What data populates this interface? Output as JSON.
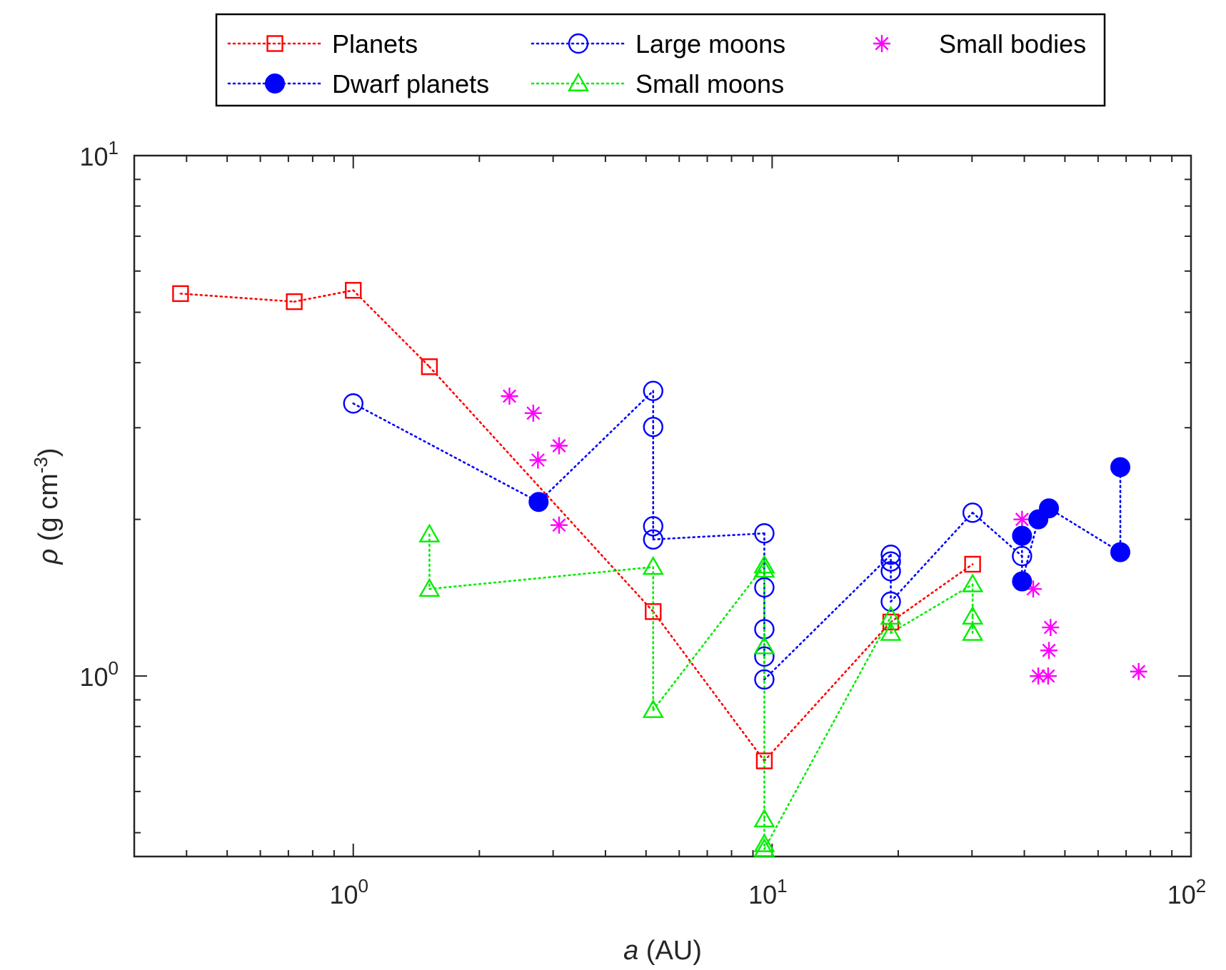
{
  "chart_data": {
    "type": "scatter",
    "xscale": "log",
    "yscale": "log",
    "xlim": [
      0.3,
      100
    ],
    "ylim": [
      0.45,
      10
    ],
    "x_ticks": [
      {
        "value": 1,
        "base": "10",
        "exp": "0"
      },
      {
        "value": 10,
        "base": "10",
        "exp": "1"
      },
      {
        "value": 100,
        "base": "10",
        "exp": "2"
      }
    ],
    "y_ticks": [
      {
        "value": 1,
        "base": "10",
        "exp": "0"
      },
      {
        "value": 10,
        "base": "10",
        "exp": "1"
      }
    ],
    "xlabel": {
      "var": "a",
      "rest": " (AU)"
    },
    "ylabel": {
      "var": "ρ",
      "rest": " (g cm",
      "sup": "-3",
      "close": ")"
    },
    "series": [
      {
        "name": "Planets",
        "color": "#ff0000",
        "marker": "square",
        "line": "dotted",
        "points": [
          {
            "x": 0.387,
            "y": 5.43
          },
          {
            "x": 0.723,
            "y": 5.24
          },
          {
            "x": 1.0,
            "y": 5.51
          },
          {
            "x": 1.52,
            "y": 3.93
          },
          {
            "x": 5.2,
            "y": 1.33
          },
          {
            "x": 9.58,
            "y": 0.687
          },
          {
            "x": 19.2,
            "y": 1.27
          },
          {
            "x": 30.1,
            "y": 1.64
          }
        ],
        "segments": [
          [
            0,
            1
          ],
          [
            1,
            2
          ],
          [
            2,
            3
          ],
          [
            3,
            4
          ],
          [
            4,
            5
          ],
          [
            5,
            6
          ],
          [
            6,
            7
          ]
        ]
      },
      {
        "name": "Large moons",
        "color": "#0000ff",
        "marker": "circle",
        "line": "dotted",
        "points": [
          {
            "x": 1.0,
            "y": 3.34
          },
          {
            "x": 5.2,
            "y": 3.53
          },
          {
            "x": 5.2,
            "y": 3.01
          },
          {
            "x": 5.2,
            "y": 1.94
          },
          {
            "x": 5.2,
            "y": 1.83
          },
          {
            "x": 9.58,
            "y": 1.88
          },
          {
            "x": 9.58,
            "y": 1.48
          },
          {
            "x": 9.58,
            "y": 1.23
          },
          {
            "x": 9.58,
            "y": 1.09
          },
          {
            "x": 9.58,
            "y": 0.985
          },
          {
            "x": 19.2,
            "y": 1.71
          },
          {
            "x": 19.2,
            "y": 1.66
          },
          {
            "x": 19.2,
            "y": 1.59
          },
          {
            "x": 19.2,
            "y": 1.39
          },
          {
            "x": 30.1,
            "y": 2.06
          },
          {
            "x": 39.5,
            "y": 1.7
          }
        ],
        "segments": [
          [
            0,
            "dp0"
          ],
          [
            "dp0",
            1
          ],
          [
            1,
            2
          ],
          [
            2,
            3
          ],
          [
            3,
            4
          ],
          [
            4,
            5
          ],
          [
            5,
            6
          ],
          [
            6,
            7
          ],
          [
            7,
            8
          ],
          [
            8,
            9
          ],
          [
            9,
            10
          ],
          [
            10,
            11
          ],
          [
            11,
            12
          ],
          [
            12,
            13
          ],
          [
            13,
            14
          ],
          [
            14,
            15
          ]
        ]
      },
      {
        "name": "Small bodies",
        "color": "#ff00ff",
        "marker": "asterisk",
        "line": "none",
        "points": [
          {
            "x": 2.36,
            "y": 3.45
          },
          {
            "x": 2.69,
            "y": 3.2
          },
          {
            "x": 2.76,
            "y": 2.6
          },
          {
            "x": 3.1,
            "y": 2.77
          },
          {
            "x": 3.1,
            "y": 1.95
          },
          {
            "x": 39.5,
            "y": 2.0
          },
          {
            "x": 42.0,
            "y": 1.47
          },
          {
            "x": 43.2,
            "y": 1.0
          },
          {
            "x": 45.6,
            "y": 1.0
          },
          {
            "x": 45.8,
            "y": 1.12
          },
          {
            "x": 46.2,
            "y": 1.24
          },
          {
            "x": 75.0,
            "y": 1.02
          }
        ],
        "segments": []
      },
      {
        "name": "Dwarf planets",
        "color": "#0000ff",
        "marker": "filled-circle",
        "line": "dotted",
        "points": [
          {
            "x": 2.77,
            "y": 2.16
          },
          {
            "x": 39.5,
            "y": 1.86
          },
          {
            "x": 39.5,
            "y": 1.52
          },
          {
            "x": 43.2,
            "y": 2.0
          },
          {
            "x": 45.8,
            "y": 2.1
          },
          {
            "x": 67.8,
            "y": 2.52
          },
          {
            "x": 67.8,
            "y": 1.73
          }
        ],
        "segments": [
          [
            1,
            2
          ],
          [
            2,
            3
          ],
          [
            3,
            4
          ],
          [
            4,
            6
          ],
          [
            6,
            5
          ]
        ]
      },
      {
        "name": "Small moons",
        "color": "#00ee00",
        "marker": "triangle",
        "line": "dotted",
        "points": [
          {
            "x": 1.52,
            "y": 1.87
          },
          {
            "x": 1.52,
            "y": 1.47
          },
          {
            "x": 5.2,
            "y": 1.62
          },
          {
            "x": 5.2,
            "y": 0.86
          },
          {
            "x": 9.58,
            "y": 1.63
          },
          {
            "x": 9.58,
            "y": 1.6
          },
          {
            "x": 9.58,
            "y": 1.14
          },
          {
            "x": 9.58,
            "y": 0.53
          },
          {
            "x": 9.58,
            "y": 0.475
          },
          {
            "x": 9.58,
            "y": 0.465
          },
          {
            "x": 19.2,
            "y": 1.3
          },
          {
            "x": 19.2,
            "y": 1.21
          },
          {
            "x": 30.1,
            "y": 1.5
          },
          {
            "x": 30.1,
            "y": 1.3
          },
          {
            "x": 30.1,
            "y": 1.21
          }
        ],
        "segments": [
          [
            0,
            1
          ],
          [
            1,
            2
          ],
          [
            2,
            3
          ],
          [
            3,
            4
          ],
          [
            4,
            5
          ],
          [
            5,
            6
          ],
          [
            6,
            7
          ],
          [
            7,
            8
          ],
          [
            8,
            9
          ],
          [
            9,
            10
          ],
          [
            10,
            11
          ],
          [
            11,
            12
          ],
          [
            12,
            13
          ],
          [
            13,
            14
          ]
        ]
      }
    ],
    "legend": {
      "placement": "top",
      "entries": [
        {
          "label": "Planets",
          "series": "Planets"
        },
        {
          "label": "Large moons",
          "series": "Large moons"
        },
        {
          "label": "Small bodies",
          "series": "Small bodies"
        },
        {
          "label": "Dwarf planets",
          "series": "Dwarf planets"
        },
        {
          "label": "Small moons",
          "series": "Small moons"
        }
      ]
    }
  }
}
